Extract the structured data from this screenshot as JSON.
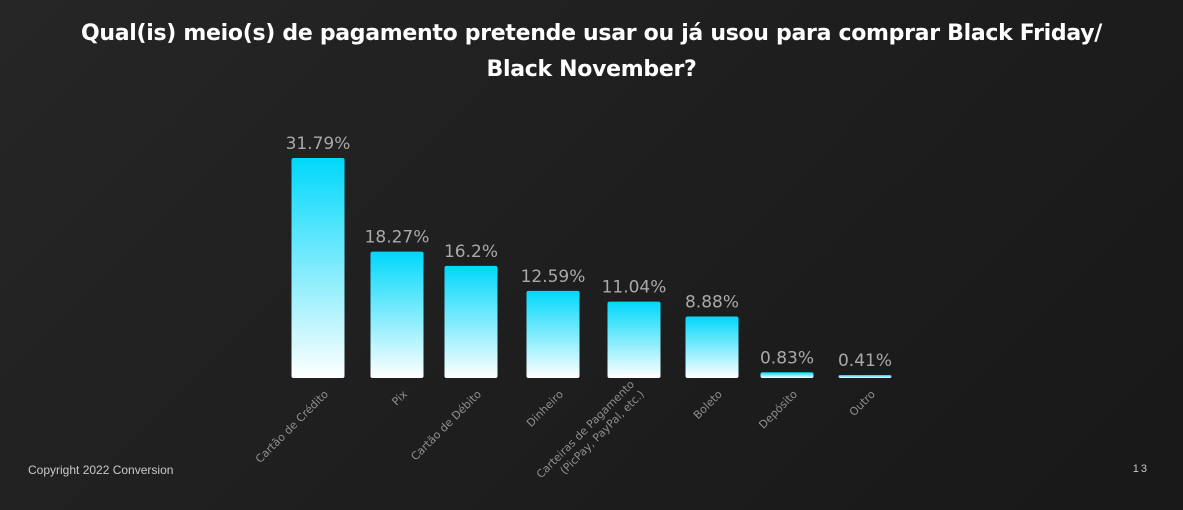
{
  "slide": {
    "title_line1": "Qual(is) meio(s) de pagamento pretende usar ou já usou para comprar Black Friday/",
    "title_line2": "Black November?",
    "copyright": "Copyright 2022 Conversion",
    "page_number": "13"
  },
  "chart_data": {
    "type": "bar",
    "categories": [
      [
        "Cartão de Crédito"
      ],
      [
        "Pix"
      ],
      [
        "Cartão de Débito"
      ],
      [
        "Dinheiro"
      ],
      [
        "Carteiras de Pagamento",
        "(PicPay, PayPal, etc.)"
      ],
      [
        "Boleto"
      ],
      [
        "Depósito"
      ],
      [
        "Outro"
      ]
    ],
    "values": [
      31.79,
      18.27,
      16.2,
      12.59,
      11.04,
      8.88,
      0.83,
      0.41
    ],
    "data_labels": [
      "31.79%",
      "18.27%",
      "16.2%",
      "12.59%",
      "11.04%",
      "8.88%",
      "0.83%",
      "0.41%"
    ],
    "ylim": [
      0,
      31.79
    ],
    "grid": false,
    "colors": {
      "bar_top": "#00d8fb",
      "bar_bottom": "#ffffff",
      "data_label": "#a9a9a9",
      "tick_label": "#8f8f8f"
    }
  }
}
